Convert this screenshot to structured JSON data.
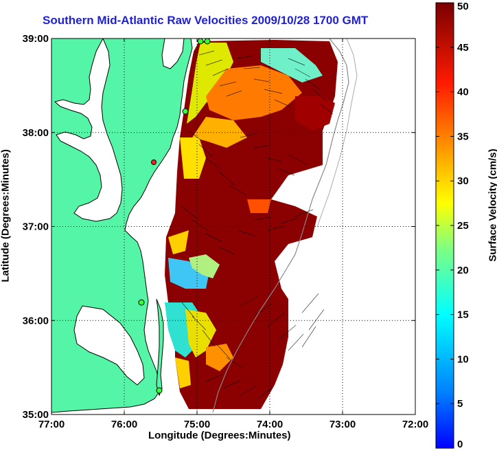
{
  "title": "Southern Mid-Atlantic Raw Velocities 2009/10/28 1700 GMT",
  "xlabel": "Longitude (Degrees:Minutes)",
  "ylabel": "Latitude (Degrees:Minutes)",
  "colorbar": {
    "label": "Surface Velocity (cm/s)",
    "ticks": [
      "0",
      "5",
      "10",
      "15",
      "20",
      "25",
      "30",
      "35",
      "40",
      "45",
      "50"
    ],
    "range": [
      0,
      50
    ],
    "colormap": "jet"
  },
  "map": {
    "lon_ticks": [
      "77:00",
      "76:00",
      "75:00",
      "74:00",
      "73:00",
      "72:00"
    ],
    "lat_ticks": [
      "39:00",
      "38:00",
      "37:00",
      "36:00",
      "35:00"
    ],
    "lon_range": [
      -77,
      -72
    ],
    "lat_range": [
      35,
      39
    ],
    "land_color": "#55f5a7",
    "grid": "dotted"
  }
}
